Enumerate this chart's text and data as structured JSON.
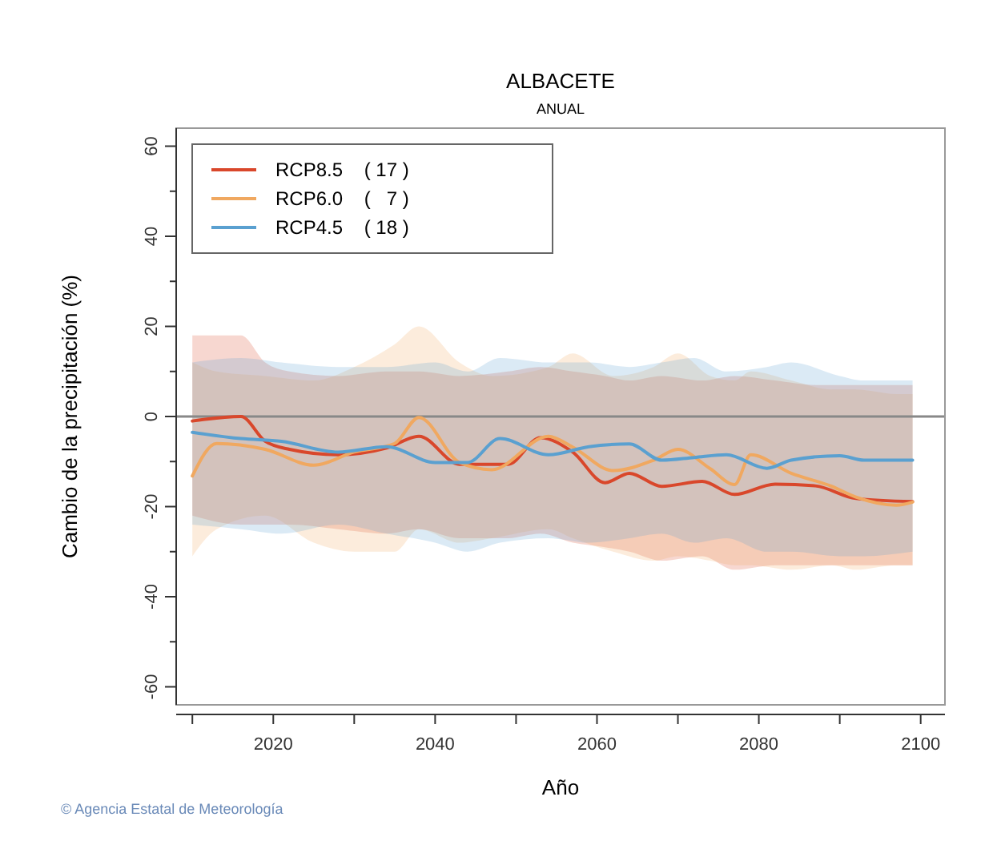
{
  "chart_data": {
    "type": "line",
    "title": "ALBACETE",
    "subtitle": "ANUAL",
    "xlabel": "Año",
    "ylabel": "Cambio de la precipitación (%)",
    "annotations": [
      "© Agencia Estatal de Meteorología"
    ],
    "xlim": [
      2008,
      2103
    ],
    "ylim": [
      -64,
      64
    ],
    "xticks": [
      {
        "value": 2010,
        "label": null
      },
      2020,
      {
        "value": 2030,
        "label": null
      },
      2040,
      {
        "value": 2050,
        "label": null
      },
      2060,
      {
        "value": 2070,
        "label": null
      },
      2080,
      {
        "value": 2090,
        "label": null
      },
      2100
    ],
    "yticks": [
      -60,
      {
        "value": -50,
        "label": null
      },
      -40,
      {
        "value": -30,
        "label": null
      },
      -20,
      {
        "value": -10,
        "label": null
      },
      0,
      {
        "value": 10,
        "label": null
      },
      20,
      {
        "value": 30,
        "label": null
      },
      40,
      {
        "value": 50,
        "label": null
      },
      60
    ],
    "ref_lines": [
      {
        "axis": "y",
        "value": 0,
        "color": "#888888"
      }
    ],
    "legend": "top left",
    "grid": false,
    "marker": "none",
    "line_style": "solid",
    "series": [
      {
        "name": "RCP8.5    ( 17 )",
        "color": "#d9472b",
        "x": [
          2010,
          2016,
          2019,
          2022,
          2028,
          2034,
          2038,
          2043,
          2049,
          2053,
          2057,
          2061,
          2064,
          2068,
          2073,
          2077,
          2082,
          2087,
          2092,
          2099
        ],
        "values": [
          -1,
          0,
          -5.5,
          -7.3,
          -8.5,
          -7,
          -4.4,
          -10.6,
          -10.6,
          -4.7,
          -7.9,
          -14.7,
          -12.6,
          -15.5,
          -14.4,
          -17.3,
          -15,
          -15.4,
          -18.2,
          -18.9
        ],
        "upper": [
          18,
          18,
          12,
          10,
          9,
          10,
          10,
          9,
          10,
          11,
          10,
          9,
          8,
          9,
          8,
          9,
          8,
          7,
          7,
          7
        ],
        "lower": [
          -22,
          -24,
          -24,
          -24,
          -25,
          -26,
          -25,
          -27,
          -27,
          -26,
          -28,
          -29,
          -30,
          -32,
          -31,
          -34,
          -33,
          -33,
          -33,
          -33
        ]
      },
      {
        "name": "RCP6.0    (   7 )",
        "color": "#f0a860",
        "x": [
          2010,
          2013,
          2019,
          2025,
          2030,
          2035,
          2038,
          2043,
          2047,
          2054,
          2057,
          2062,
          2067,
          2070,
          2074,
          2077,
          2079,
          2084,
          2089,
          2092,
          2097,
          2099
        ],
        "values": [
          -13.2,
          -6,
          -7.3,
          -10.8,
          -7.9,
          -6,
          -0.2,
          -10.2,
          -11.8,
          -4.4,
          -6.8,
          -12,
          -9.7,
          -7.3,
          -11.6,
          -15.1,
          -8.5,
          -12.6,
          -15.5,
          -17.9,
          -19.7,
          -19
        ],
        "upper": [
          12,
          10,
          9,
          8,
          11,
          16,
          20,
          12,
          9,
          11,
          14,
          9,
          11,
          14,
          9,
          8,
          10,
          8,
          6,
          6,
          5,
          5
        ],
        "lower": [
          -31,
          -25,
          -22,
          -28,
          -30,
          -30,
          -25,
          -28,
          -27,
          -25,
          -27,
          -30,
          -32,
          -31,
          -32,
          -33,
          -33,
          -34,
          -33,
          -34,
          -33,
          -33
        ]
      },
      {
        "name": "RCP4.5    ( 18 )",
        "color": "#5aa0d0",
        "x": [
          2010,
          2016,
          2021,
          2028,
          2034,
          2040,
          2044,
          2048,
          2054,
          2059,
          2064,
          2068,
          2072,
          2076,
          2081,
          2084,
          2090,
          2093,
          2099
        ],
        "values": [
          -3.5,
          -4.9,
          -5.5,
          -7.9,
          -6.7,
          -10.2,
          -10.2,
          -4.9,
          -8.5,
          -6.7,
          -6.1,
          -9.7,
          -9.1,
          -8.5,
          -11.5,
          -9.7,
          -8.7,
          -9.7,
          -9.7
        ],
        "upper": [
          12,
          13,
          12,
          11,
          11,
          12,
          10,
          13,
          12,
          12,
          11,
          12,
          13,
          10,
          11,
          12,
          9,
          8,
          8
        ],
        "lower": [
          -24,
          -25,
          -26,
          -24,
          -26,
          -28,
          -30,
          -28,
          -27,
          -28,
          -27,
          -26,
          -28,
          -27,
          -30,
          -30,
          -31,
          -31,
          -30
        ]
      }
    ]
  }
}
